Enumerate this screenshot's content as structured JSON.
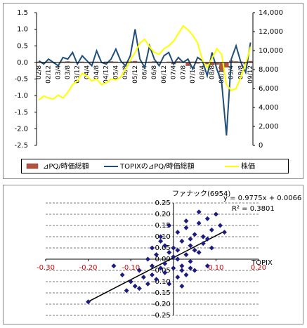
{
  "chart_data": [
    {
      "type": "combo",
      "categories": [
        "02/8",
        null,
        "02/12",
        null,
        "03/4",
        null,
        "03/8",
        null,
        "03/12",
        null,
        "04/4",
        null,
        "04/8",
        null,
        "04/12",
        null,
        "05/4",
        null,
        "05/8",
        null,
        "05/12",
        null,
        "06/4",
        null,
        "06/8",
        null,
        "06/12",
        null,
        "07/4",
        null,
        "07/8",
        null,
        "07/12",
        null,
        "08/4",
        null,
        "08/8",
        null,
        "08/12",
        null,
        "09/4",
        null,
        "09/8",
        null,
        "09/12"
      ],
      "series": [
        {
          "name": "⊿PQ/時価総額",
          "type": "bar",
          "color": "#b5523b",
          "values": [
            0.02,
            0.01,
            0.02,
            0.01,
            -0.01,
            0.02,
            0.03,
            0.02,
            0.01,
            0.02,
            0.01,
            0.02,
            0.02,
            0.01,
            0.02,
            0.03,
            0.02,
            0.01,
            0.02,
            0.03,
            0.04,
            0.02,
            0.01,
            0.02,
            0.03,
            0.02,
            0.01,
            0.02,
            -0.05,
            0.03,
            0.02,
            -0.1,
            0.02,
            -0.03,
            0.01,
            -0.05,
            -0.08,
            -0.06,
            -0.25,
            -0.15,
            0.05,
            0.03,
            0.02,
            -0.05,
            0.04
          ]
        },
        {
          "name": "TOPIXの⊿PQ/時価総額",
          "type": "line",
          "color": "#1f4e79",
          "values": [
            0.05,
            -0.05,
            0.1,
            0.0,
            -0.1,
            0.15,
            0.1,
            0.3,
            -0.05,
            0.2,
            0.05,
            -0.1,
            0.35,
            0.0,
            -0.05,
            0.1,
            0.4,
            0.05,
            -0.1,
            0.2,
            1.0,
            0.1,
            -0.15,
            0.5,
            0.1,
            -0.1,
            0.2,
            0.3,
            -0.05,
            0.15,
            0.0,
            0.1,
            -0.2,
            0.15,
            0.05,
            -0.4,
            0.3,
            -0.2,
            -0.6,
            -2.2,
            0.1,
            0.5,
            0.0,
            -0.3,
            0.6
          ]
        },
        {
          "name": "株価",
          "type": "line",
          "axis": "y2",
          "color": "#ffff00",
          "values": [
            4800,
            5200,
            5000,
            4900,
            5300,
            5000,
            5600,
            6400,
            6800,
            7600,
            7300,
            6800,
            7000,
            6400,
            6600,
            7000,
            6900,
            7200,
            8000,
            9000,
            9800,
            10800,
            11200,
            10400,
            9800,
            9600,
            10200,
            10500,
            11000,
            11800,
            12600,
            12200,
            11600,
            10800,
            9000,
            8200,
            9200,
            10200,
            9600,
            6400,
            5800,
            6000,
            7200,
            8600,
            10400
          ]
        }
      ],
      "ylim": [
        -2.5,
        1.5
      ],
      "yticks": [
        1.5,
        {
          "value": 1,
          "label": "1.0"
        },
        0.5,
        {
          "value": 0,
          "label": "0.0"
        },
        -0.5,
        {
          "value": -1,
          "label": "-1.0"
        },
        -1.5,
        {
          "value": -2,
          "label": "-2.0"
        },
        -2.5
      ],
      "y2lim": [
        0,
        14000
      ],
      "y2ticks": [
        {
          "value": 14000,
          "label": "14,000"
        },
        {
          "value": 12000,
          "label": "12,000"
        },
        {
          "value": 10000,
          "label": "10,000"
        },
        {
          "value": 8000,
          "label": "8,000"
        },
        {
          "value": 6000,
          "label": "6,000"
        },
        {
          "value": 4000,
          "label": "4,000"
        },
        {
          "value": 2000,
          "label": "2,000"
        },
        0
      ],
      "grid": false,
      "legend": "bottom"
    },
    {
      "type": "scatter",
      "y_label": "ファナック(6954)",
      "x_label": "TOPIX",
      "annotations": [
        "y = 0.9775x + 0.0066",
        "R² = 0.3801"
      ],
      "color": "#1c1c80",
      "x": [
        -0.2,
        -0.14,
        -0.12,
        -0.11,
        -0.1,
        -0.09,
        -0.08,
        -0.08,
        -0.07,
        -0.06,
        -0.06,
        -0.05,
        -0.05,
        -0.04,
        -0.04,
        -0.03,
        -0.03,
        -0.02,
        -0.02,
        -0.02,
        -0.01,
        -0.01,
        0,
        0,
        0,
        0.01,
        0.01,
        0.01,
        0.02,
        0.02,
        0.02,
        0.03,
        0.03,
        0.03,
        0.04,
        0.04,
        0.04,
        0.05,
        0.05,
        0.05,
        0.06,
        0.06,
        0.07,
        0.07,
        0.08,
        0.08,
        0.09,
        0.09,
        0.1,
        0.11,
        0.12,
        0.02,
        -0.03,
        0.06,
        -0.01,
        0.03,
        0.08,
        -0.05,
        0.01,
        0.04
      ],
      "values": [
        -0.19,
        -0.03,
        -0.07,
        -0.14,
        -0.1,
        -0.12,
        -0.05,
        -0.13,
        -0.08,
        0.0,
        -0.11,
        -0.03,
        -0.07,
        0.02,
        -0.09,
        -0.04,
        0.1,
        0.06,
        -0.02,
        -0.06,
        0.03,
        -0.11,
        0.05,
        0.01,
        -0.04,
        0.12,
        0.0,
        -0.08,
        0.08,
        -0.03,
        -0.05,
        0.14,
        0.02,
        -0.07,
        0.06,
        -0.01,
        0.09,
        0.11,
        0.04,
        -0.05,
        0.16,
        0.03,
        0.1,
        0.07,
        0.18,
        -0.03,
        0.13,
        0.05,
        0.2,
        0.15,
        0.12,
        -0.12,
        0.08,
        0.21,
        0.15,
        0.17,
        0.09,
        0.05,
        0.04,
        -0.04
      ],
      "trendline": {
        "x": [
          -0.2,
          0.12
        ],
        "values": [
          -0.1889,
          0.1239
        ]
      },
      "xlim": [
        -0.3,
        0.2
      ],
      "xticks": [
        {
          "value": -0.3,
          "label": "-0.30"
        },
        {
          "value": -0.2,
          "label": "-0.20"
        },
        {
          "value": -0.1,
          "label": "-0.10"
        },
        {
          "value": 0.1,
          "label": "0.10"
        },
        {
          "value": 0.2,
          "label": "0.20"
        }
      ],
      "ylim": [
        -0.25,
        0.25
      ],
      "yticks": [
        0.25,
        {
          "value": 0.2,
          "label": "0.20"
        },
        0.15,
        {
          "value": 0.1,
          "label": "0.10"
        },
        0.05,
        {
          "value": 0,
          "label": "0.00"
        },
        -0.05,
        {
          "value": -0.1,
          "label": "-0.10"
        },
        -0.15,
        {
          "value": -0.2,
          "label": "-0.20"
        },
        -0.25
      ],
      "grid": true
    }
  ]
}
